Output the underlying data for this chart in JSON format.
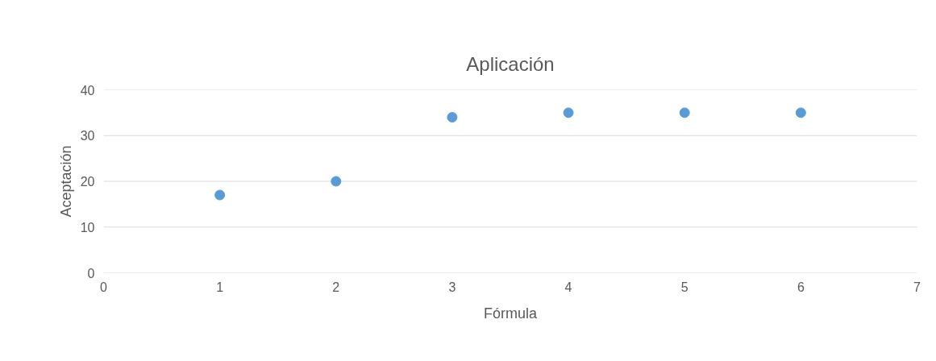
{
  "chart_data": {
    "type": "scatter",
    "title": "Aplicación",
    "xlabel": "Fórmula",
    "ylabel": "Aceptación",
    "x": [
      1,
      2,
      3,
      4,
      5,
      6
    ],
    "series": [
      {
        "color": "#5b9bd5",
        "values": [
          17,
          20,
          34,
          35,
          35,
          35
        ]
      }
    ],
    "xlim": [
      0,
      7
    ],
    "xticks": [
      0,
      1,
      2,
      3,
      4,
      5,
      6,
      7
    ],
    "ylim": [
      0,
      40
    ],
    "yticks": [
      0,
      10,
      20,
      30,
      40
    ],
    "grid": "y",
    "marker": "circle"
  }
}
